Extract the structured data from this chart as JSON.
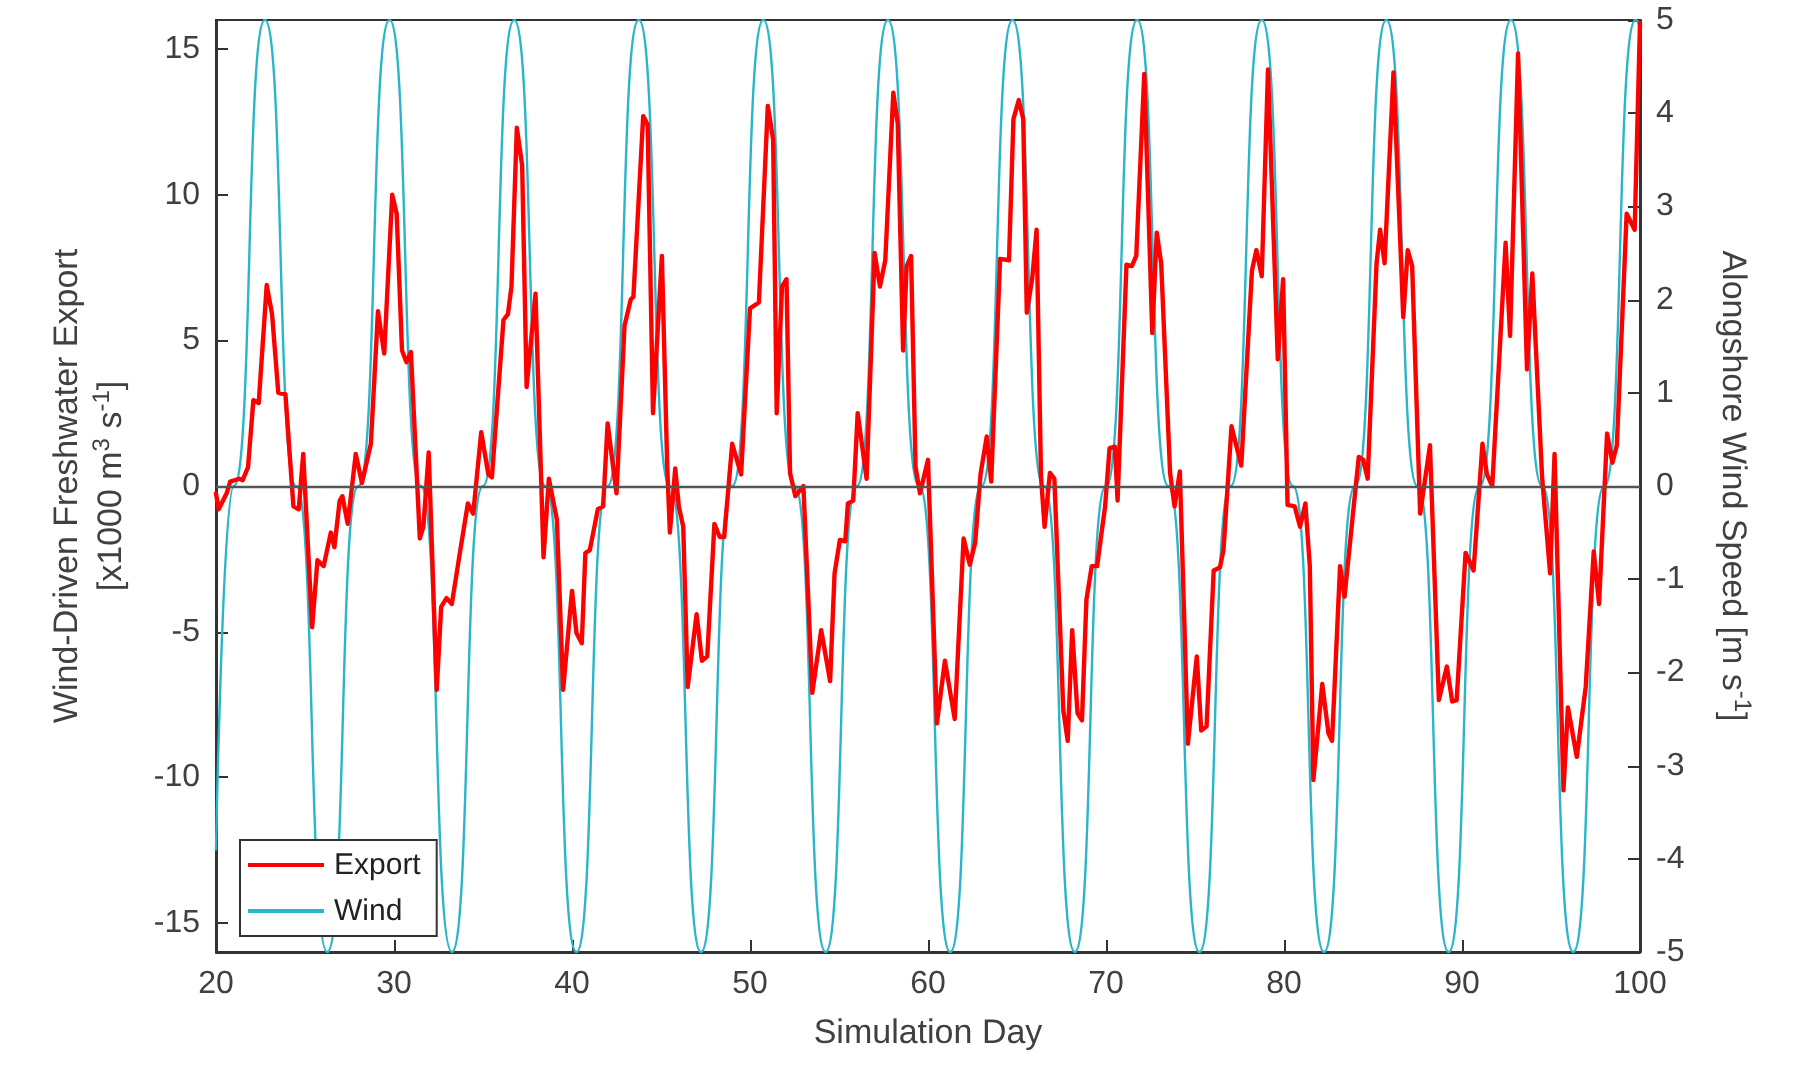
{
  "chart_data": {
    "type": "line",
    "xlabel": "Simulation Day",
    "ylabel": "Wind-Driven Freshwater Export\n[x1000 m$^{3}$ s$^{-1}$]",
    "y2label": "Alongshore Wind Speed [m s$^{-1}$]",
    "xlim": [
      20,
      100
    ],
    "xticks": [
      20,
      30,
      40,
      50,
      60,
      70,
      80,
      90,
      100
    ],
    "ylim": [
      -16,
      16
    ],
    "yticks": [
      -15,
      -10,
      -5,
      0,
      5,
      10,
      15
    ],
    "y2lim": [
      -5,
      5
    ],
    "y2ticks": [
      -5,
      -4,
      -3,
      -2,
      -1,
      0,
      1,
      2,
      3,
      4,
      5
    ],
    "grid": false,
    "legend": "bottom left",
    "marker": "none",
    "line_style": "solid",
    "ref_lines": [
      {
        "axis": "y",
        "value": 0,
        "color": "#555555"
      }
    ],
    "series": [
      {
        "name": "Export",
        "color": "#ff0000",
        "x": [
          20,
          20.15,
          20.6,
          20.8,
          21.3,
          21.5,
          21.8,
          22.1,
          22.4,
          22.85,
          23.15,
          23.5,
          23.9,
          24.35,
          24.65,
          24.9,
          25.4,
          25.7,
          26.05,
          26.45,
          26.65,
          26.95,
          27.1,
          27.4,
          27.85,
          28.2,
          28.7,
          29.1,
          29.45,
          29.9,
          30.15,
          30.45,
          30.7,
          30.95,
          31.45,
          31.65,
          31.95,
          32.4,
          32.65,
          32.95,
          33.25,
          33.7,
          34.15,
          34.45,
          34.9,
          35.3,
          35.5,
          36.15,
          36.4,
          36.6,
          36.9,
          37.2,
          37.45,
          37.95,
          38.4,
          38.7,
          39.15,
          39.5,
          40,
          40.25,
          40.55,
          40.75,
          41,
          41.45,
          41.75,
          42,
          42.5,
          42.95,
          43.3,
          43.45,
          44,
          44.25,
          44.55,
          45.05,
          45.35,
          45.5,
          45.8,
          46,
          46.25,
          46.5,
          47,
          47.3,
          47.6,
          48,
          48.3,
          48.55,
          49,
          49.5,
          50,
          50.5,
          51,
          51.3,
          51.5,
          51.8,
          52.05,
          52.25,
          52.55,
          53,
          53.5,
          54,
          54.5,
          54.75,
          55.05,
          55.35,
          55.5,
          55.8,
          56.05,
          56.55,
          57,
          57.3,
          57.6,
          58.05,
          58.3,
          58.6,
          58.8,
          59.05,
          59.3,
          59.55,
          60,
          60.5,
          60.95,
          61.5,
          62,
          62.35,
          62.65,
          62.95,
          63.3,
          63.55,
          64.05,
          64.55,
          64.8,
          65.1,
          65.35,
          65.55,
          65.85,
          66.1,
          66.35,
          66.55,
          66.85,
          67.1,
          67.6,
          67.85,
          68.1,
          68.4,
          68.65,
          68.9,
          69.2,
          69.5,
          69.95,
          70.2,
          70.5,
          70.65,
          71.15,
          71.45,
          71.7,
          72.15,
          72.6,
          72.85,
          73.1,
          73.6,
          73.85,
          74.15,
          74.6,
          75.1,
          75.35,
          75.65,
          76.05,
          76.4,
          76.6,
          77.05,
          77.6,
          78.2,
          78.45,
          78.75,
          79.1,
          79.65,
          79.95,
          80.2,
          80.6,
          80.9,
          81.2,
          81.45,
          81.65,
          82.15,
          82.5,
          82.7,
          83.15,
          83.4,
          84.2,
          84.45,
          84.7,
          85.2,
          85.4,
          85.65,
          86.15,
          86.7,
          86.95,
          87.2,
          87.65,
          88.2,
          88.7,
          89.15,
          89.45,
          89.7,
          90.2,
          90.65,
          91.15,
          91.4,
          91.7,
          92.45,
          92.7,
          93.15,
          93.65,
          93.95,
          94.5,
          94.95,
          95.2,
          95.7,
          95.95,
          96.45,
          96.95,
          97.4,
          97.7,
          98.15,
          98.45,
          98.7,
          99.25,
          99.7,
          100
        ],
        "values": [
          -0.25,
          -0.8,
          -0.25,
          0.15,
          0.25,
          0.2,
          0.65,
          2.95,
          2.85,
          6.9,
          5.9,
          3.2,
          3.15,
          -0.7,
          -0.8,
          1.1,
          -4.85,
          -2.55,
          -2.75,
          -1.6,
          -2.1,
          -0.5,
          -0.35,
          -1.3,
          1.1,
          0.1,
          1.45,
          6,
          4.55,
          10,
          9.35,
          4.65,
          4.25,
          4.6,
          -1.8,
          -1.4,
          1.15,
          -7,
          -4.15,
          -3.85,
          -4.05,
          -2.3,
          -0.6,
          -0.95,
          1.85,
          0.4,
          0.3,
          5.7,
          5.9,
          6.85,
          12.3,
          11,
          3.4,
          6.6,
          -2.45,
          0.25,
          -1.15,
          -7,
          -3.6,
          -5.05,
          -5.4,
          -2.3,
          -2.2,
          -0.8,
          -0.7,
          2.15,
          -0.25,
          5.5,
          6.4,
          6.5,
          12.7,
          12.4,
          2.5,
          7.9,
          0.65,
          -1.6,
          0.6,
          -0.7,
          -1.4,
          -6.9,
          -4.4,
          -6,
          -5.85,
          -1.3,
          -1.75,
          -1.75,
          1.45,
          0.4,
          6.1,
          6.3,
          13.05,
          11.9,
          2.5,
          6.85,
          7.1,
          0.45,
          -0.35,
          0,
          -7.1,
          -4.95,
          -6.7,
          -3,
          -1.85,
          -1.9,
          -0.6,
          -0.5,
          2.5,
          0.25,
          8,
          6.85,
          7.75,
          13.5,
          12.45,
          4.65,
          7.55,
          7.9,
          0.65,
          -0.25,
          0.9,
          -8.15,
          -6,
          -8,
          -1.8,
          -2.7,
          -1.95,
          0.4,
          1.7,
          0.15,
          7.8,
          7.75,
          12.6,
          13.25,
          12.6,
          5.95,
          7.1,
          8.8,
          0.3,
          -1.4,
          0.45,
          0.25,
          -7.7,
          -8.75,
          -4.95,
          -7.8,
          -8.05,
          -3.9,
          -2.75,
          -2.75,
          -0.7,
          1.3,
          1.35,
          -0.5,
          7.6,
          7.55,
          7.9,
          14.15,
          5.25,
          8.7,
          7.65,
          0.45,
          -0.7,
          0.5,
          -8.85,
          -5.85,
          -8.4,
          -8.25,
          -2.9,
          -2.8,
          -2.2,
          2.05,
          0.7,
          7.4,
          8.1,
          7.2,
          14.3,
          4.35,
          7.1,
          -0.65,
          -0.7,
          -1.4,
          -0.6,
          -2.75,
          -10.1,
          -6.8,
          -8.5,
          -8.75,
          -2.75,
          -3.8,
          1,
          0.9,
          0.25,
          7.65,
          8.8,
          7.65,
          14.2,
          5.8,
          8.1,
          7.55,
          -0.95,
          1.4,
          -7.35,
          -6.2,
          -7.4,
          -7.35,
          -2.3,
          -2.9,
          1.45,
          0.4,
          0,
          8.35,
          5.15,
          14.85,
          4,
          7.3,
          0.3,
          -3,
          1.1,
          -10.45,
          -7.6,
          -9.3,
          -6.9,
          -2.25,
          -4.05,
          1.8,
          0.8,
          1.4,
          9.35,
          8.8,
          15.9
        ]
      },
      {
        "name": "Wind",
        "color": "#2bb5c8",
        "axis": "y2",
        "x": [
          20,
          21,
          22.75,
          24.5,
          26.25,
          28,
          29.75,
          31.5,
          33.25,
          35,
          36.75,
          38.5,
          40.25,
          42,
          43.75,
          45.5,
          47.25,
          49,
          50.75,
          52.5,
          54.25,
          56,
          57.75,
          59.5,
          61.25,
          63,
          64.75,
          66.5,
          68.25,
          70,
          71.75,
          73.5,
          75.25,
          77,
          78.75,
          80.5,
          82.25,
          84,
          85.75,
          87.5,
          89.25,
          91,
          92.75,
          94.5,
          96.25,
          98,
          99.75,
          100
        ],
        "values": [
          -3.9,
          0,
          5,
          0,
          -5,
          0,
          5,
          0,
          -5,
          0,
          5,
          0,
          -5,
          0,
          5,
          0,
          -5,
          0,
          5,
          0,
          -5,
          0,
          5,
          0,
          -5,
          0,
          5,
          0,
          -5,
          0,
          5,
          0,
          -5,
          0,
          5,
          0,
          -5,
          0,
          5,
          0,
          -5,
          0,
          5,
          0,
          -5,
          0,
          5,
          4.9
        ]
      }
    ]
  }
}
